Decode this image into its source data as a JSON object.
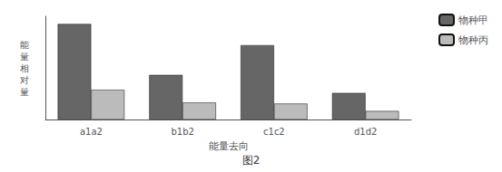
{
  "chart_data": {
    "type": "bar",
    "title": "图2",
    "categories": [
      "a1a2",
      "b1b2",
      "c1c2",
      "d1d2"
    ],
    "series": [
      {
        "name": "物种甲",
        "color": "#666666",
        "values": [
          9.0,
          4.2,
          7.0,
          2.5
        ]
      },
      {
        "name": "物种丙",
        "color": "#bbbbbb",
        "values": [
          2.8,
          1.6,
          1.5,
          0.8
        ]
      }
    ],
    "xlabel": "能量去向",
    "ylabel": "能\n量\n相\n对\n量",
    "ylim": [
      0,
      9.72
    ],
    "tick_labels": "x",
    "grid": false,
    "legend": "upper right"
  }
}
